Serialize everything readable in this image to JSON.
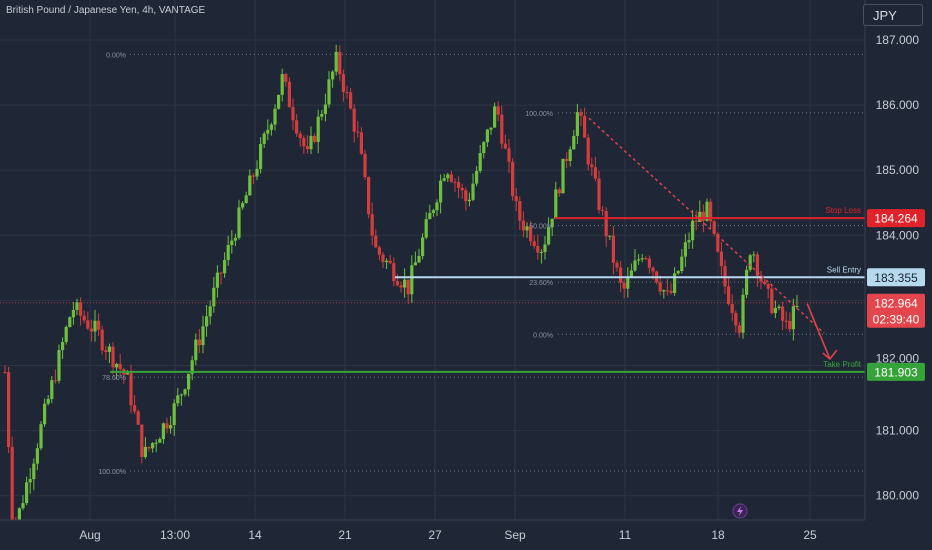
{
  "header": {
    "symbol_line": "British Pound / Japanese Yen, 4h, VANTAGE",
    "currency_button": "JPY"
  },
  "colors": {
    "background": "#1f2736",
    "grid": "#2c3444",
    "up": "#6fbf3f",
    "down": "#d33d3d",
    "stop_loss": "#e0232a",
    "sell_entry": "#b7d9ee",
    "take_profit": "#36a33a",
    "price_label": "#e2454b",
    "fib_dot": "#7f8796"
  },
  "chart_data": {
    "type": "candlestick",
    "title": "British Pound / Japanese Yen, 4h, VANTAGE",
    "y_axis": {
      "ticks": [
        "187.000",
        "186.000",
        "185.000",
        "184.000",
        "181.000",
        "180.000"
      ],
      "hidden_tick": "182.000",
      "ylim": [
        179.6,
        187.3
      ]
    },
    "x_axis": {
      "ticks": [
        "Aug",
        "13:00",
        "14",
        "21",
        "27",
        "Sep",
        "11",
        "18",
        "25"
      ]
    },
    "price_path": [
      {
        "t": 0,
        "p": 181.9
      },
      {
        "t": 0.1,
        "p": 179.4
      },
      {
        "t": 0.8,
        "p": 182.9
      },
      {
        "t": 1.1,
        "p": 182.5
      },
      {
        "t": 1.45,
        "p": 181.8
      },
      {
        "t": 1.65,
        "p": 180.6
      },
      {
        "t": 2.0,
        "p": 181.3
      },
      {
        "t": 2.1,
        "p": 181.6
      },
      {
        "t": 3.05,
        "p": 185.3
      },
      {
        "t": 3.3,
        "p": 186.4
      },
      {
        "t": 3.6,
        "p": 185.2
      },
      {
        "t": 3.95,
        "p": 186.7
      },
      {
        "t": 4.2,
        "p": 185.5
      },
      {
        "t": 4.4,
        "p": 183.8
      },
      {
        "t": 4.8,
        "p": 183.2
      },
      {
        "t": 5.25,
        "p": 185.1
      },
      {
        "t": 5.5,
        "p": 184.5
      },
      {
        "t": 5.85,
        "p": 186.0
      },
      {
        "t": 6.1,
        "p": 184.3
      },
      {
        "t": 6.4,
        "p": 183.8
      },
      {
        "t": 6.7,
        "p": 185.3
      },
      {
        "t": 6.82,
        "p": 185.9
      },
      {
        "t": 7.05,
        "p": 184.6
      },
      {
        "t": 7.35,
        "p": 183.1
      },
      {
        "t": 7.6,
        "p": 183.8
      },
      {
        "t": 7.9,
        "p": 183.0
      },
      {
        "t": 8.2,
        "p": 184.2
      },
      {
        "t": 8.35,
        "p": 184.4
      },
      {
        "t": 8.55,
        "p": 183.3
      },
      {
        "t": 8.75,
        "p": 182.6
      },
      {
        "t": 8.88,
        "p": 183.9
      },
      {
        "t": 9.05,
        "p": 183.1
      },
      {
        "t": 9.3,
        "p": 182.6
      },
      {
        "t": 9.45,
        "p": 182.9
      }
    ],
    "levels": [
      {
        "name": "Stop Loss",
        "price": 184.264,
        "label": "184.264"
      },
      {
        "name": "Sell Entry",
        "price": 183.355,
        "label": "183.355"
      },
      {
        "name": "Take Profit",
        "price": 181.903,
        "label": "181.903"
      }
    ],
    "current_price": {
      "price": 182.964,
      "label": "182.964",
      "countdown": "02:39:40"
    },
    "fib_left": {
      "labels": [
        "0.00%",
        "78.60%",
        "100.00%"
      ],
      "prices": [
        186.78,
        181.82,
        180.38
      ]
    },
    "fib_right": {
      "labels": [
        "100.00%",
        "50.00%",
        "23.60%",
        "0.00%"
      ],
      "prices": [
        185.88,
        184.15,
        183.28,
        182.48
      ]
    },
    "trendline": {
      "from": {
        "t": 6.95,
        "p": 185.8
      },
      "to": {
        "t": 9.75,
        "p": 182.5
      }
    },
    "projection": {
      "from": {
        "t": 9.55,
        "p": 182.95
      },
      "to": {
        "t": 9.82,
        "p": 182.1
      }
    },
    "legend": "none",
    "grid": true
  }
}
